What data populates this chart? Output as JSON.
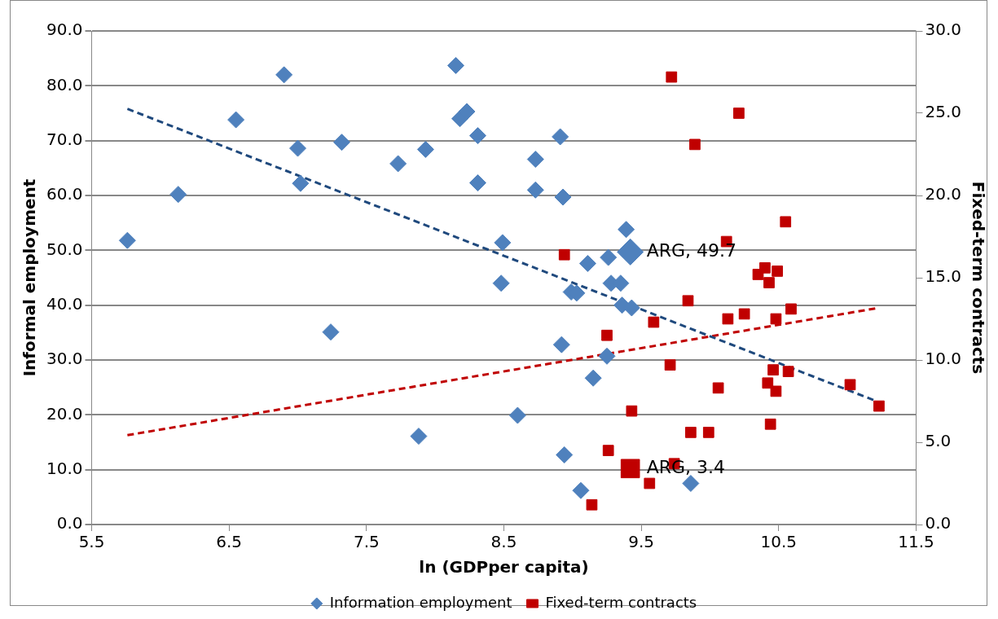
{
  "chart_data": {
    "type": "scatter",
    "xlabel": "ln (GDPper capita)",
    "ylabel": "Informal employment",
    "y2label": "Fixed-term contracts",
    "xlim": [
      5.5,
      11.5
    ],
    "xticks": [
      5.5,
      6.5,
      7.5,
      8.5,
      9.5,
      10.5,
      11.5
    ],
    "ylim": [
      0,
      90
    ],
    "yticks": [
      {
        "value": 0,
        "label": "0.0"
      },
      {
        "value": 10,
        "label": "10.0"
      },
      {
        "value": 20,
        "label": "20.0"
      },
      {
        "value": 30,
        "label": "30.0"
      },
      {
        "value": 40,
        "label": "40.0"
      },
      {
        "value": 50,
        "label": "50.0"
      },
      {
        "value": 60,
        "label": "60.0"
      },
      {
        "value": 70,
        "label": "70.0"
      },
      {
        "value": 80,
        "label": "80.0"
      },
      {
        "value": 90,
        "label": "90.0"
      }
    ],
    "y2lim": [
      0,
      30
    ],
    "y2ticks": [
      {
        "value": 0,
        "label": "0.0"
      },
      {
        "value": 5,
        "label": "5.0"
      },
      {
        "value": 10,
        "label": "10.0"
      },
      {
        "value": 15,
        "label": "15.0"
      },
      {
        "value": 20,
        "label": "20.0"
      },
      {
        "value": 25,
        "label": "25.0"
      },
      {
        "value": 30,
        "label": "30.0"
      }
    ],
    "grid": "y",
    "legend": "bottom",
    "series": [
      {
        "name": "Information employment",
        "color": "#4f81bd",
        "marker": "diamond",
        "x": [
          5.76,
          6.13,
          6.55,
          6.9,
          7.0,
          7.02,
          7.24,
          7.32,
          7.73,
          7.88,
          7.93,
          8.15,
          8.18,
          8.23,
          8.31,
          8.31,
          8.48,
          8.49,
          8.6,
          8.73,
          8.73,
          8.91,
          8.92,
          8.93,
          8.94,
          8.99,
          9.03,
          9.06,
          9.11,
          9.15,
          9.25,
          9.26,
          9.28,
          9.35,
          9.36,
          9.39,
          9.43,
          9.86
        ],
        "values": [
          51.8,
          60.2,
          73.8,
          82.0,
          68.6,
          62.2,
          35.1,
          69.7,
          65.8,
          16.1,
          68.4,
          83.7,
          74.0,
          75.3,
          70.9,
          62.3,
          44.0,
          51.4,
          19.9,
          66.6,
          61.0,
          70.7,
          32.8,
          59.7,
          12.7,
          42.4,
          42.2,
          6.2,
          47.6,
          26.7,
          30.7,
          48.7,
          44.0,
          44.0,
          40.0,
          53.8,
          39.5,
          7.5
        ]
      },
      {
        "name": "Fixed-term contracts",
        "color": "#c00000",
        "marker": "square",
        "axis": "y2",
        "x": [
          8.94,
          9.14,
          9.25,
          9.26,
          9.43,
          9.56,
          9.59,
          9.71,
          9.72,
          9.74,
          9.84,
          9.86,
          9.89,
          9.99,
          10.06,
          10.12,
          10.13,
          10.21,
          10.25,
          10.35,
          10.4,
          10.42,
          10.43,
          10.44,
          10.46,
          10.48,
          10.48,
          10.49,
          10.55,
          10.57,
          10.59,
          11.02,
          11.23
        ],
        "values": [
          16.4,
          1.2,
          11.5,
          4.5,
          6.9,
          2.5,
          12.3,
          9.7,
          27.2,
          3.7,
          13.6,
          5.6,
          23.1,
          5.6,
          8.3,
          17.2,
          12.5,
          25.0,
          12.8,
          15.2,
          15.6,
          8.6,
          14.7,
          6.1,
          9.4,
          8.1,
          12.5,
          15.4,
          18.4,
          9.3,
          13.1,
          8.5,
          7.2
        ]
      },
      {
        "color": "#4f81bd",
        "marker": "diamond",
        "x": [
          9.42
        ],
        "values": [
          49.7
        ],
        "value_labels": [
          "ARG, 49.7"
        ]
      },
      {
        "color": "#c00000",
        "marker": "square",
        "axis": "y2",
        "x": [
          9.42
        ],
        "values": [
          3.4
        ],
        "value_labels": [
          "ARG, 3.4"
        ]
      },
      {
        "type": "line",
        "color": "#1f497d",
        "marker": "none",
        "line_style": "dashed",
        "x": [
          5.76,
          11.2
        ],
        "values": [
          75.8,
          22.6
        ]
      },
      {
        "type": "line",
        "color": "#c00000",
        "marker": "none",
        "line_style": "dashed",
        "axis": "y2",
        "x": [
          5.76,
          11.23
        ],
        "values": [
          5.43,
          13.17
        ]
      }
    ]
  }
}
